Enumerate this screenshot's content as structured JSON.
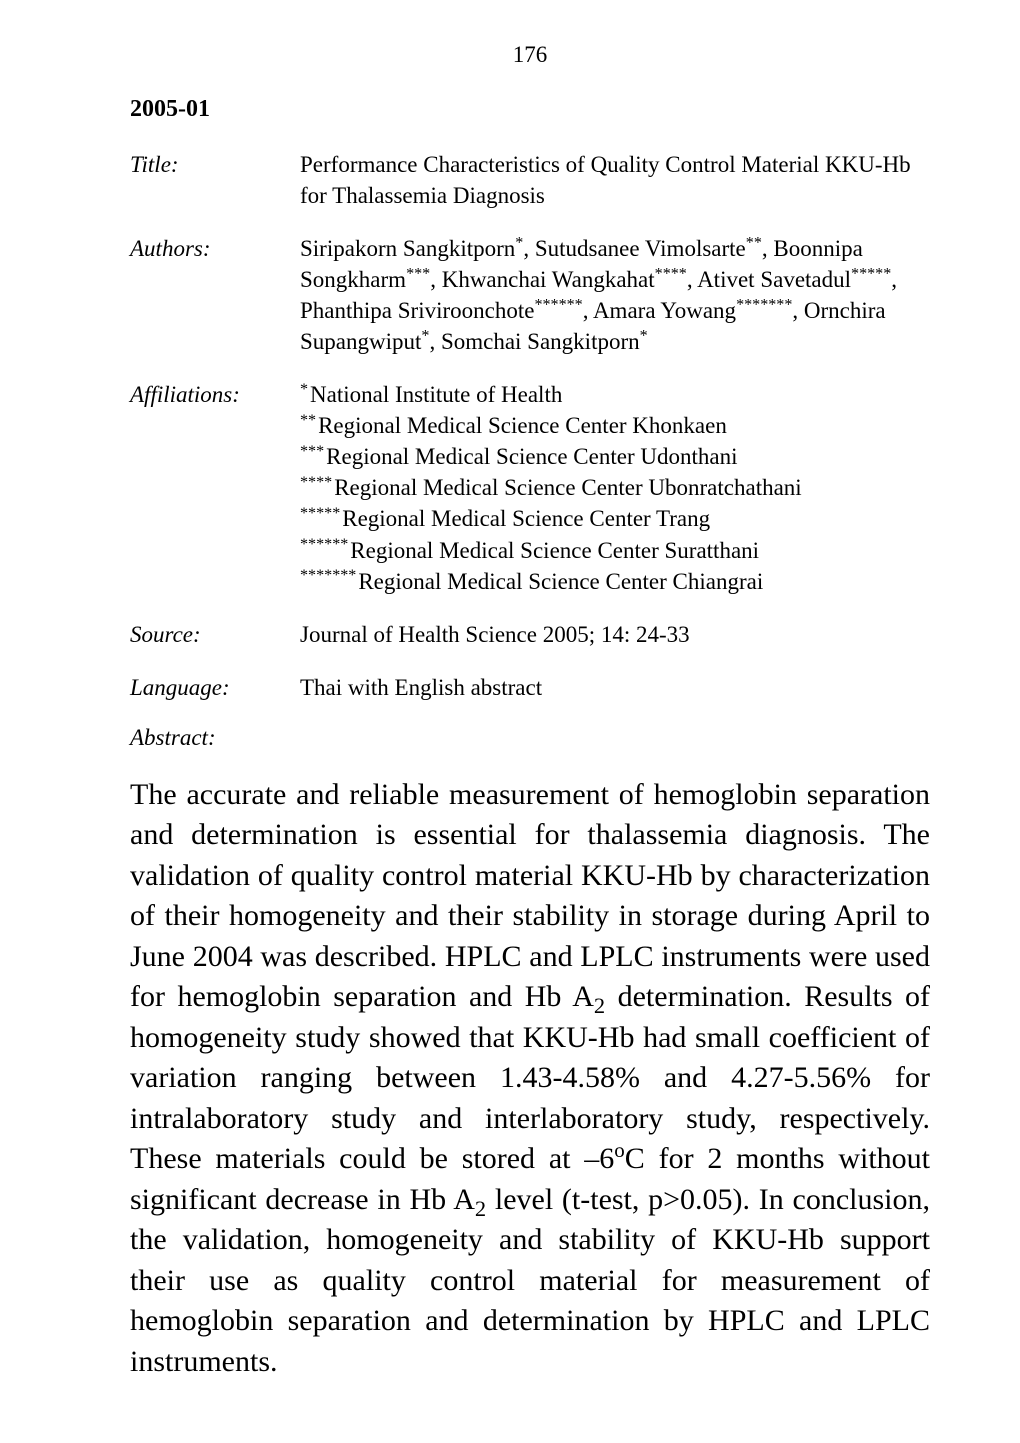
{
  "page_number": "176",
  "entry_id": "2005-01",
  "title_label": "Title:",
  "title": "Performance Characteristics of Quality Control Material KKU-Hb for Thalassemia Diagnosis",
  "authors_label": "Authors:",
  "authors_html": "Siripakorn Sangkitporn<sup>*</sup>, Sutudsanee Vimolsarte<sup>**</sup>, Boonnipa Songkharm<sup>***</sup>, Khwanchai Wangkahat<sup>****</sup>, Ativet Savetadul<sup>*****</sup>, Phanthipa Sriviroonchote<sup>******</sup>, Amara Yowang<sup>*******</sup>, Ornchira Supangwiput<sup>*</sup>, Somchai Sangkitporn<sup>*</sup>",
  "affiliations_label": "Affiliations:",
  "affiliations": [
    {
      "mark": "*",
      "text": "National Institute of Health"
    },
    {
      "mark": "**",
      "text": "Regional Medical Science Center Khonkaen"
    },
    {
      "mark": "***",
      "text": "Regional Medical Science Center  Udonthani"
    },
    {
      "mark": "****",
      "text": "Regional Medical Science Center Ubonratchathani"
    },
    {
      "mark": "*****",
      "text": "Regional Medical Science Center Trang"
    },
    {
      "mark": "******",
      "text": "Regional Medical Science Center Suratthani"
    },
    {
      "mark": "*******",
      "text": "Regional Medical Science Center Chiangrai"
    }
  ],
  "source_label": "Source:",
  "source": "Journal of Health Science 2005; 14: 24-33",
  "language_label": "Language:",
  "language": "Thai with English abstract",
  "abstract_label": "Abstract:",
  "abstract_html": "The accurate and reliable measurement of hemoglobin separation and determination is essential for thalassemia diagnosis.  The validation of quality control material KKU-Hb by characterization of their homogeneity and their stability in storage during April to June 2004 was described.  HPLC and LPLC instruments were used for hemoglobin separation and Hb A<sub>2</sub> determination.  Results of homogeneity study showed that KKU-Hb had small coefficient of variation ranging between 1.43-4.58% and 4.27-5.56% for intralaboratory study and interlaboratory study, respectively. These materials could be stored at –6<sup>o</sup>C for 2 months without significant decrease in Hb A<sub>2</sub> level (t-test, p>0.05). In conclusion, the validation, homogeneity and stability of KKU-Hb support their use as quality control material for measurement of hemoglobin separation and determination by HPLC and LPLC instruments."
}
